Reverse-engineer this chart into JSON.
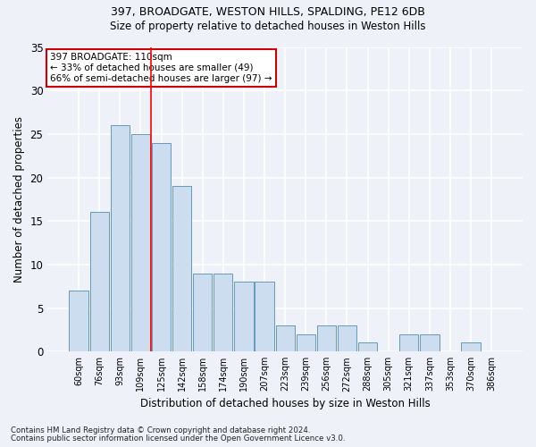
{
  "title1": "397, BROADGATE, WESTON HILLS, SPALDING, PE12 6DB",
  "title2": "Size of property relative to detached houses in Weston Hills",
  "xlabel": "Distribution of detached houses by size in Weston Hills",
  "ylabel": "Number of detached properties",
  "footnote1": "Contains HM Land Registry data © Crown copyright and database right 2024.",
  "footnote2": "Contains public sector information licensed under the Open Government Licence v3.0.",
  "annotation_line1": "397 BROADGATE: 110sqm",
  "annotation_line2": "← 33% of detached houses are smaller (49)",
  "annotation_line3": "66% of semi-detached houses are larger (97) →",
  "bar_labels": [
    "60sqm",
    "76sqm",
    "93sqm",
    "109sqm",
    "125sqm",
    "142sqm",
    "158sqm",
    "174sqm",
    "190sqm",
    "207sqm",
    "223sqm",
    "239sqm",
    "256sqm",
    "272sqm",
    "288sqm",
    "305sqm",
    "321sqm",
    "337sqm",
    "353sqm",
    "370sqm",
    "386sqm"
  ],
  "bar_values": [
    7,
    16,
    26,
    25,
    24,
    19,
    9,
    9,
    8,
    8,
    3,
    2,
    3,
    3,
    1,
    0,
    2,
    2,
    0,
    1,
    0
  ],
  "bar_color": "#ccddf0",
  "bar_edge_color": "#6699bb",
  "red_line_x": 3.5,
  "ylim": [
    0,
    35
  ],
  "yticks": [
    0,
    5,
    10,
    15,
    20,
    25,
    30,
    35
  ],
  "bg_color": "#eef2f8",
  "grid_color": "#ffffff",
  "annotation_box_color": "#ffffff",
  "annotation_box_edge": "#cc0000",
  "title1_fontsize": 9,
  "title2_fontsize": 8.5
}
